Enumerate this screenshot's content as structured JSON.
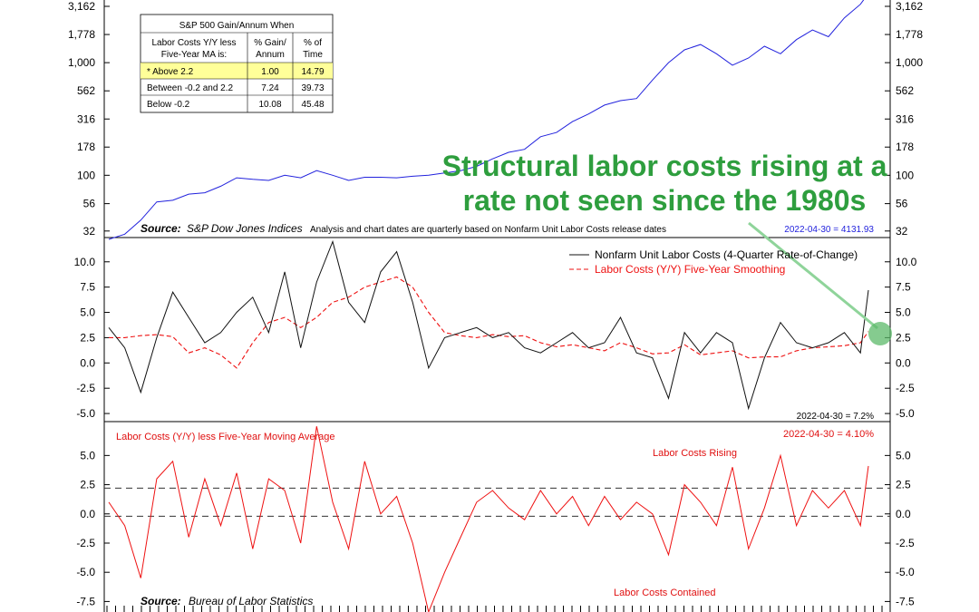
{
  "annotation": {
    "line1": "Structural labor costs rising at a",
    "line2": "rate not seen since the 1980s"
  },
  "colors": {
    "sp500": "#2222dd",
    "ulc": "#111111",
    "smooth": "#ee1111",
    "diff": "#ee1111",
    "annotation": "#2e9e3e",
    "highlight_row": "#ffff99"
  },
  "table": {
    "title": "S&P 500 Gain/Annum When",
    "col1_header_line1": "Labor Costs Y/Y less",
    "col1_header_line2": "Five-Year MA is:",
    "col2_header_line1": "% Gain/",
    "col2_header_line2": "Annum",
    "col3_header_line1": "% of",
    "col3_header_line2": "Time",
    "rows": [
      {
        "label": "* Above 2.2",
        "gain": "1.00",
        "time": "14.79",
        "highlight": true
      },
      {
        "label": "Between -0.2 and 2.2",
        "gain": "7.24",
        "time": "39.73",
        "highlight": false
      },
      {
        "label": "Below -0.2",
        "gain": "10.08",
        "time": "45.48",
        "highlight": false
      }
    ]
  },
  "panel1": {
    "source_label": "Source:",
    "source_text": "S&P Dow Jones Indices",
    "note": "Analysis and chart dates are quarterly based on Nonfarm Unit Labor Costs release dates",
    "last_value": "2022-04-30 = 4131.93"
  },
  "panel2": {
    "legend_ulc": "Nonfarm Unit Labor Costs (4-Quarter Rate-of-Change)",
    "legend_smooth": "Labor Costs (Y/Y) Five-Year Smoothing",
    "last_value": "2022-04-30 = 7.2%"
  },
  "panel3": {
    "title": "Labor Costs (Y/Y) less Five-Year Moving Average",
    "last_value": "2022-04-30 = 4.10%",
    "label_rising": "Labor Costs Rising",
    "label_contained": "Labor Costs Contained",
    "source_label": "Source:",
    "source_text": "Bureau of Labor Statistics"
  },
  "chart_data": [
    {
      "type": "line",
      "scale": "log",
      "y_tick_labels": [
        "32",
        "56",
        "100",
        "178",
        "316",
        "562",
        "1,000",
        "1,778",
        "3,162"
      ],
      "ylim": [
        28,
        3600
      ],
      "x": [
        0,
        20,
        40,
        60,
        80,
        100,
        120,
        140,
        160,
        180,
        200,
        220,
        240,
        260,
        280,
        300,
        320,
        340,
        360,
        380,
        400,
        420,
        440,
        460,
        480,
        500,
        520,
        540,
        560,
        580,
        600,
        620,
        640,
        660,
        680,
        700,
        720,
        740,
        760,
        780,
        800,
        820,
        840,
        860,
        880,
        900,
        920,
        940,
        950
      ],
      "series": [
        {
          "values": [
            27,
            30,
            40,
            58,
            60,
            68,
            70,
            80,
            95,
            92,
            90,
            100,
            95,
            110,
            100,
            90,
            96,
            96,
            95,
            98,
            100,
            105,
            110,
            120,
            140,
            160,
            170,
            220,
            240,
            300,
            350,
            420,
            460,
            480,
            700,
            1000,
            1300,
            1450,
            1200,
            950,
            1100,
            1400,
            1200,
            1600,
            1950,
            1700,
            2500,
            3300,
            4131.93
          ]
        }
      ]
    },
    {
      "type": "line",
      "y_tick_labels": [
        "10.0",
        "7.5",
        "5.0",
        "2.5",
        "0.0",
        "-2.5",
        "-5.0"
      ],
      "ylim": [
        -5.8,
        12.4
      ],
      "x": [
        0,
        20,
        40,
        60,
        80,
        100,
        120,
        140,
        160,
        180,
        200,
        220,
        240,
        260,
        280,
        300,
        320,
        340,
        360,
        380,
        400,
        420,
        440,
        460,
        480,
        500,
        520,
        540,
        560,
        580,
        600,
        620,
        640,
        660,
        680,
        700,
        720,
        740,
        760,
        780,
        800,
        820,
        840,
        860,
        880,
        900,
        920,
        940,
        950
      ],
      "series": [
        {
          "name": "Nonfarm Unit Labor Costs (4-Quarter Rate-of-Change)",
          "values": [
            3.5,
            1.5,
            -2.9,
            2.5,
            7.0,
            4.5,
            2.0,
            3.0,
            5.0,
            6.5,
            3.0,
            9.0,
            1.5,
            8.0,
            12.0,
            6.0,
            4.0,
            9.0,
            11.0,
            6.0,
            -0.5,
            2.5,
            3.0,
            3.5,
            2.5,
            3.0,
            1.5,
            1.0,
            2.0,
            3.0,
            1.5,
            2.0,
            4.5,
            1.0,
            0.5,
            -3.5,
            3.0,
            1.0,
            3.0,
            2.0,
            -4.5,
            0.5,
            4.0,
            2.0,
            1.5,
            2.0,
            3.0,
            1.0,
            7.2
          ]
        },
        {
          "name": "Labor Costs (Y/Y) Five-Year Smoothing",
          "values": [
            2.5,
            2.5,
            2.7,
            2.8,
            2.6,
            1.0,
            1.5,
            0.8,
            -0.5,
            2.0,
            4.0,
            4.5,
            3.5,
            4.5,
            6.0,
            6.5,
            7.5,
            8.0,
            8.5,
            7.5,
            5.0,
            3.0,
            2.7,
            2.5,
            2.8,
            2.6,
            2.7,
            2.0,
            1.6,
            1.8,
            1.5,
            1.2,
            2.0,
            1.5,
            0.9,
            1.0,
            1.8,
            0.8,
            1.0,
            1.2,
            0.5,
            0.6,
            0.6,
            1.2,
            1.5,
            1.6,
            1.7,
            2.0,
            3.1
          ]
        }
      ]
    },
    {
      "type": "line",
      "y_tick_labels": [
        "5.0",
        "2.5",
        "0.0",
        "-2.5",
        "-5.0",
        "-7.5"
      ],
      "ylim": [
        -8.4,
        7.9
      ],
      "reference_lines": [
        2.2,
        -0.2
      ],
      "x": [
        0,
        20,
        40,
        60,
        80,
        100,
        120,
        140,
        160,
        180,
        200,
        220,
        240,
        260,
        280,
        300,
        320,
        340,
        360,
        380,
        400,
        420,
        440,
        460,
        480,
        500,
        520,
        540,
        560,
        580,
        600,
        620,
        640,
        660,
        680,
        700,
        720,
        740,
        760,
        780,
        800,
        820,
        840,
        860,
        880,
        900,
        920,
        940,
        950
      ],
      "series": [
        {
          "name": "Labor Costs (Y/Y) less Five-Year Moving Average",
          "values": [
            1.0,
            -1.0,
            -5.5,
            3.0,
            4.5,
            -2.0,
            3.0,
            -1.0,
            3.5,
            -3.0,
            3.0,
            2.0,
            -2.5,
            7.5,
            1.0,
            -3.0,
            4.5,
            0.0,
            1.5,
            -2.5,
            -8.4,
            -5.0,
            -2.0,
            1.0,
            2.0,
            0.5,
            -0.5,
            2.0,
            0.0,
            1.5,
            -1.0,
            1.5,
            -0.5,
            1.0,
            0.0,
            -3.5,
            2.5,
            1.0,
            -1.0,
            4.0,
            -3.0,
            0.5,
            5.0,
            -1.0,
            2.0,
            0.5,
            2.0,
            -1.0,
            4.1
          ]
        }
      ]
    }
  ]
}
